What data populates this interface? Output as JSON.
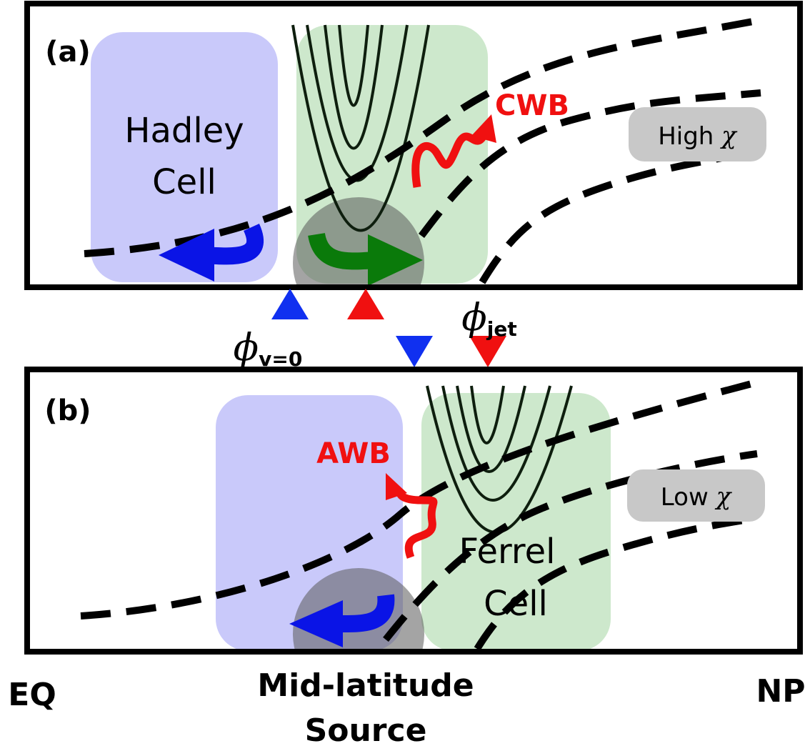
{
  "panel_a": {
    "label": "(a)",
    "cell_lines": [
      "Hadley",
      "Cell"
    ],
    "wave_breaking": "CWB",
    "chi": {
      "word": "High",
      "symbol": "χ"
    }
  },
  "markers": {
    "phi_v0": {
      "symbol": "ϕ",
      "subscript": "v=0"
    },
    "phi_jet": {
      "symbol": "ϕ",
      "subscript": "jet"
    }
  },
  "panel_b": {
    "label": "(b)",
    "cell_lines": [
      "Ferrel",
      "Cell"
    ],
    "wave_breaking": "AWB",
    "chi": {
      "word": "Low",
      "symbol": "χ"
    }
  },
  "axis": {
    "left": "EQ",
    "center": [
      "Mid-latitude",
      "Source"
    ],
    "right": "NP"
  }
}
